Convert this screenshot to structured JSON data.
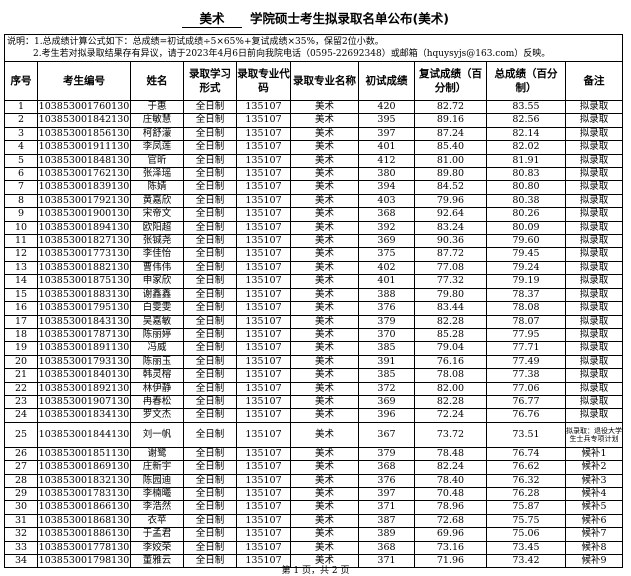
{
  "title": {
    "major": "美术",
    "rest": "学院硕士考生拟录取名单公布(美术)"
  },
  "notes": [
    "说明：1.总成绩计算公式如下：总成绩=初试成绩÷5×65%+复试成绩×35%，保留2位小数。",
    "2.考生若对拟录取结果存有异议，请于2023年4月6日前向我院电话（0595-22692348）或邮箱（hquysyjs@163.com）反映。"
  ],
  "headers": [
    "序号",
    "考生编号",
    "姓名",
    "录取学习形式",
    "录取专业代码",
    "录取专业名称",
    "初试成绩",
    "复试成绩（百分制）",
    "总成绩（百分制）",
    "备注"
  ],
  "rows": [
    [
      "1",
      "103853001760130",
      "于惠",
      "全日制",
      "135107",
      "美术",
      "420",
      "82.72",
      "83.55",
      "拟录取"
    ],
    [
      "2",
      "103853001842130",
      "庄敏慧",
      "全日制",
      "135107",
      "美术",
      "395",
      "89.16",
      "82.56",
      "拟录取"
    ],
    [
      "3",
      "103853001856130",
      "柯舒濛",
      "全日制",
      "135107",
      "美术",
      "397",
      "87.24",
      "82.14",
      "拟录取"
    ],
    [
      "4",
      "103853001911130",
      "李凤莲",
      "全日制",
      "135107",
      "美术",
      "401",
      "85.40",
      "82.02",
      "拟录取"
    ],
    [
      "5",
      "103853001848130",
      "官昕",
      "全日制",
      "135107",
      "美术",
      "412",
      "81.00",
      "81.91",
      "拟录取"
    ],
    [
      "6",
      "103853001762130",
      "张泽瑶",
      "全日制",
      "135107",
      "美术",
      "380",
      "89.80",
      "80.83",
      "拟录取"
    ],
    [
      "7",
      "103853001839130",
      "陈婧",
      "全日制",
      "135107",
      "美术",
      "394",
      "84.52",
      "80.80",
      "拟录取"
    ],
    [
      "8",
      "103853001792130",
      "黄嘉欣",
      "全日制",
      "135107",
      "美术",
      "403",
      "79.96",
      "80.38",
      "拟录取"
    ],
    [
      "9",
      "103853001900130",
      "宋帝文",
      "全日制",
      "135107",
      "美术",
      "368",
      "92.64",
      "80.26",
      "拟录取"
    ],
    [
      "10",
      "103853001894130",
      "欧阳超",
      "全日制",
      "135107",
      "美术",
      "392",
      "83.24",
      "80.09",
      "拟录取"
    ],
    [
      "11",
      "103853001827130",
      "张铖尧",
      "全日制",
      "135107",
      "美术",
      "369",
      "90.36",
      "79.60",
      "拟录取"
    ],
    [
      "12",
      "103853001773130",
      "李佳怡",
      "全日制",
      "135107",
      "美术",
      "375",
      "87.72",
      "79.45",
      "拟录取"
    ],
    [
      "13",
      "103853001882130",
      "曹伟伟",
      "全日制",
      "135107",
      "美术",
      "402",
      "77.08",
      "79.24",
      "拟录取"
    ],
    [
      "14",
      "103853001875130",
      "申家欣",
      "全日制",
      "135107",
      "美术",
      "401",
      "77.32",
      "79.19",
      "拟录取"
    ],
    [
      "15",
      "103853001883130",
      "谢鑫鑫",
      "全日制",
      "135107",
      "美术",
      "388",
      "79.80",
      "78.37",
      "拟录取"
    ],
    [
      "16",
      "103853001795130",
      "白雯雯",
      "全日制",
      "135107",
      "美术",
      "376",
      "83.44",
      "78.08",
      "拟录取"
    ],
    [
      "17",
      "103853001843130",
      "吴嘉敏",
      "全日制",
      "135107",
      "美术",
      "379",
      "82.28",
      "78.07",
      "拟录取"
    ],
    [
      "18",
      "103853001787130",
      "陈丽婷",
      "全日制",
      "135107",
      "美术",
      "370",
      "85.28",
      "77.95",
      "拟录取"
    ],
    [
      "19",
      "103853001891130",
      "冯威",
      "全日制",
      "135107",
      "美术",
      "385",
      "79.04",
      "77.71",
      "拟录取"
    ],
    [
      "20",
      "103853001793130",
      "陈丽玉",
      "全日制",
      "135107",
      "美术",
      "391",
      "76.16",
      "77.49",
      "拟录取"
    ],
    [
      "21",
      "103853001840130",
      "韩灵榕",
      "全日制",
      "135107",
      "美术",
      "385",
      "78.08",
      "77.38",
      "拟录取"
    ],
    [
      "22",
      "103853001892130",
      "林伊静",
      "全日制",
      "135107",
      "美术",
      "372",
      "82.00",
      "77.06",
      "拟录取"
    ],
    [
      "23",
      "103853001907130",
      "冉春松",
      "全日制",
      "135107",
      "美术",
      "369",
      "82.28",
      "76.77",
      "拟录取"
    ],
    [
      "24",
      "103853001834130",
      "罗文杰",
      "全日制",
      "135107",
      "美术",
      "396",
      "72.24",
      "76.76",
      "拟录取"
    ],
    [
      "25",
      "103853001844130",
      "刘一帆",
      "全日制",
      "135107",
      "美术",
      "367",
      "73.72",
      "73.51",
      "拟录取：退役大学生士兵专项计划"
    ],
    [
      "26",
      "103853001851130",
      "谢鹭",
      "全日制",
      "135107",
      "美术",
      "379",
      "78.48",
      "76.74",
      "候补1"
    ],
    [
      "27",
      "103853001869130",
      "庄新宇",
      "全日制",
      "135107",
      "美术",
      "368",
      "82.24",
      "76.62",
      "候补2"
    ],
    [
      "28",
      "103853001832130",
      "陈园迪",
      "全日制",
      "135107",
      "美术",
      "376",
      "78.40",
      "76.32",
      "候补3"
    ],
    [
      "29",
      "103853001783130",
      "李楠曦",
      "全日制",
      "135107",
      "美术",
      "397",
      "70.48",
      "76.28",
      "候补4"
    ],
    [
      "30",
      "103853001866130",
      "李浩然",
      "全日制",
      "135107",
      "美术",
      "371",
      "78.96",
      "75.87",
      "候补5"
    ],
    [
      "31",
      "103853001868130",
      "衣苹",
      "全日制",
      "135107",
      "美术",
      "387",
      "72.68",
      "75.75",
      "候补6"
    ],
    [
      "32",
      "103853001886130",
      "于孟君",
      "全日制",
      "135107",
      "美术",
      "389",
      "69.96",
      "75.06",
      "候补7"
    ],
    [
      "33",
      "103853001778130",
      "李姣荣",
      "全日制",
      "135107",
      "美术",
      "368",
      "73.16",
      "73.45",
      "候补8"
    ],
    [
      "34",
      "103853001798130",
      "董雅云",
      "全日制",
      "135107",
      "美术",
      "371",
      "71.96",
      "73.42",
      "候补9"
    ]
  ],
  "footer": "第 1 页，共 2 页"
}
